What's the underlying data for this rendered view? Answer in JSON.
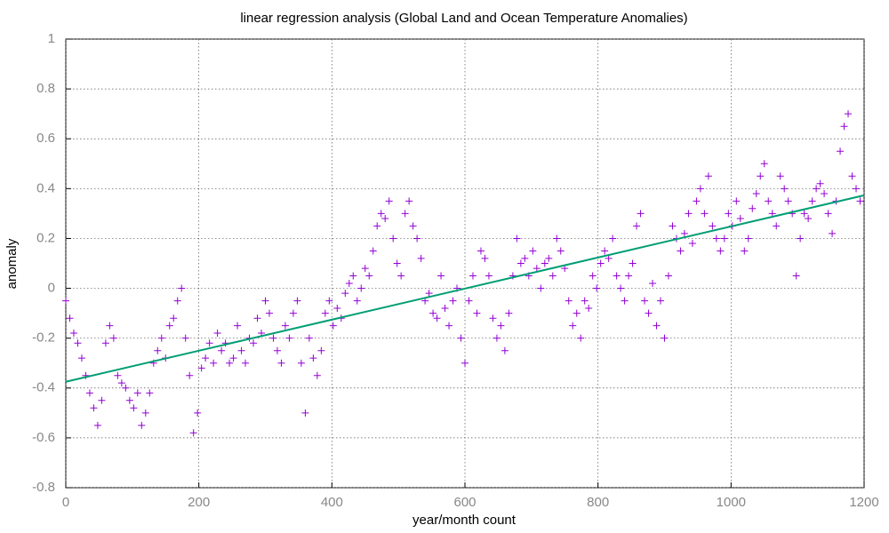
{
  "chart_data": {
    "type": "scatter",
    "title": "linear regression analysis (Global Land and Ocean Temperature Anomalies)",
    "xlabel": "year/month count",
    "ylabel": "anomaly",
    "xlim": [
      0,
      1200
    ],
    "xticks": [
      0,
      200,
      400,
      600,
      800,
      1000,
      1200
    ],
    "ylim": [
      -0.8,
      1
    ],
    "yticks": [
      -0.8,
      -0.6,
      -0.4,
      -0.2,
      0,
      0.2,
      0.4,
      0.6,
      0.8,
      1
    ],
    "grid": true,
    "series": [
      {
        "type": "scatter",
        "marker": "+",
        "color": "#9400d3",
        "x": [
          0,
          6,
          12,
          18,
          24,
          30,
          36,
          42,
          48,
          54,
          60,
          66,
          72,
          78,
          84,
          90,
          96,
          102,
          108,
          114,
          120,
          126,
          132,
          138,
          144,
          150,
          156,
          162,
          168,
          174,
          180,
          186,
          192,
          198,
          204,
          210,
          216,
          222,
          228,
          234,
          240,
          246,
          252,
          258,
          264,
          270,
          276,
          282,
          288,
          294,
          300,
          306,
          312,
          318,
          324,
          330,
          336,
          342,
          348,
          354,
          360,
          366,
          372,
          378,
          384,
          390,
          396,
          402,
          408,
          414,
          420,
          426,
          432,
          438,
          444,
          450,
          456,
          462,
          468,
          474,
          480,
          486,
          492,
          498,
          504,
          510,
          516,
          522,
          528,
          534,
          540,
          546,
          552,
          558,
          564,
          570,
          576,
          582,
          588,
          594,
          600,
          606,
          612,
          618,
          624,
          630,
          636,
          642,
          648,
          654,
          660,
          666,
          672,
          678,
          684,
          690,
          696,
          702,
          708,
          714,
          720,
          726,
          732,
          738,
          744,
          750,
          756,
          762,
          768,
          774,
          780,
          786,
          792,
          798,
          804,
          810,
          816,
          822,
          828,
          834,
          840,
          846,
          852,
          858,
          864,
          870,
          876,
          882,
          888,
          894,
          900,
          906,
          912,
          918,
          924,
          930,
          936,
          942,
          948,
          954,
          960,
          966,
          972,
          978,
          984,
          990,
          996,
          1002,
          1008,
          1014,
          1020,
          1026,
          1032,
          1038,
          1044,
          1050,
          1056,
          1062,
          1068,
          1074,
          1080,
          1086,
          1092,
          1098,
          1104,
          1110,
          1116,
          1122,
          1128,
          1134,
          1140,
          1146,
          1152,
          1158,
          1164,
          1170,
          1176,
          1182,
          1188,
          1194
        ],
        "values": [
          -0.05,
          -0.12,
          -0.18,
          -0.22,
          -0.28,
          -0.35,
          -0.42,
          -0.48,
          -0.55,
          -0.45,
          -0.22,
          -0.15,
          -0.2,
          -0.35,
          -0.38,
          -0.4,
          -0.45,
          -0.48,
          -0.42,
          -0.55,
          -0.5,
          -0.42,
          -0.3,
          -0.25,
          -0.2,
          -0.28,
          -0.15,
          -0.12,
          -0.05,
          0.0,
          -0.2,
          -0.35,
          -0.58,
          -0.5,
          -0.32,
          -0.28,
          -0.22,
          -0.3,
          -0.18,
          -0.25,
          -0.22,
          -0.3,
          -0.28,
          -0.15,
          -0.25,
          -0.3,
          -0.2,
          -0.22,
          -0.12,
          -0.18,
          -0.05,
          -0.1,
          -0.2,
          -0.25,
          -0.3,
          -0.15,
          -0.2,
          -0.1,
          -0.05,
          -0.3,
          -0.5,
          -0.2,
          -0.28,
          -0.35,
          -0.25,
          -0.1,
          -0.05,
          -0.15,
          -0.08,
          -0.12,
          -0.02,
          0.02,
          0.05,
          -0.05,
          0.0,
          0.08,
          0.05,
          0.15,
          0.25,
          0.3,
          0.28,
          0.35,
          0.2,
          0.1,
          0.05,
          0.3,
          0.35,
          0.25,
          0.2,
          0.12,
          -0.05,
          -0.02,
          -0.1,
          -0.12,
          0.05,
          -0.08,
          -0.15,
          -0.05,
          0.0,
          -0.2,
          -0.3,
          -0.05,
          0.05,
          -0.1,
          0.15,
          0.12,
          0.05,
          -0.12,
          -0.2,
          -0.15,
          -0.25,
          -0.1,
          0.05,
          0.2,
          0.1,
          0.12,
          0.05,
          0.15,
          0.08,
          0.0,
          0.1,
          0.12,
          0.05,
          0.2,
          0.15,
          0.08,
          -0.05,
          -0.15,
          -0.1,
          -0.2,
          -0.05,
          -0.08,
          0.05,
          0.0,
          0.1,
          0.15,
          0.12,
          0.2,
          0.05,
          0.0,
          -0.05,
          0.05,
          0.1,
          0.25,
          0.3,
          -0.05,
          -0.1,
          0.02,
          -0.15,
          -0.05,
          -0.2,
          0.05,
          0.25,
          0.2,
          0.15,
          0.22,
          0.3,
          0.18,
          0.35,
          0.4,
          0.3,
          0.45,
          0.25,
          0.2,
          0.15,
          0.2,
          0.3,
          0.25,
          0.35,
          0.28,
          0.15,
          0.2,
          0.32,
          0.38,
          0.45,
          0.5,
          0.35,
          0.3,
          0.25,
          0.45,
          0.4,
          0.35,
          0.3,
          0.05,
          0.2,
          0.3,
          0.28,
          0.35,
          0.4,
          0.42,
          0.38,
          0.3,
          0.22,
          0.35,
          0.55,
          0.65,
          0.7,
          0.45,
          0.4,
          0.35
        ]
      },
      {
        "type": "line",
        "color": "#009e73",
        "x": [
          0,
          1200
        ],
        "values": [
          -0.375,
          0.373
        ]
      }
    ]
  }
}
